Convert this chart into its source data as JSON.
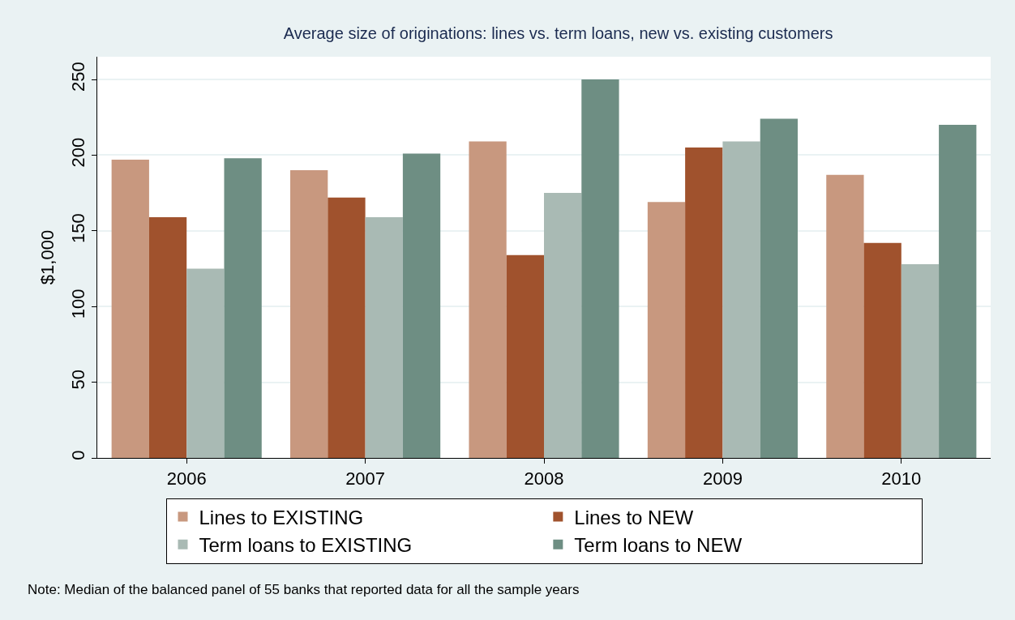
{
  "chart_data": {
    "type": "bar",
    "title": "Average size of originations: lines vs. term loans, new vs. existing customers",
    "ylabel": "$1,000",
    "categories": [
      "2006",
      "2007",
      "2008",
      "2009",
      "2010"
    ],
    "series": [
      {
        "name": "Lines to EXISTING",
        "color": "#c8987f",
        "values": [
          197,
          190,
          209,
          169,
          187
        ]
      },
      {
        "name": "Lines to NEW",
        "color": "#a0522d",
        "values": [
          159,
          172,
          134,
          205,
          142
        ]
      },
      {
        "name": "Term loans to EXISTING",
        "color": "#a9bab4",
        "values": [
          125,
          159,
          175,
          209,
          128
        ]
      },
      {
        "name": "Term loans to NEW",
        "color": "#6e8e83",
        "values": [
          198,
          201,
          250,
          224,
          220
        ]
      }
    ],
    "ylim": [
      0,
      265
    ],
    "yticks": [
      0,
      50,
      100,
      150,
      200,
      250
    ],
    "grid": "y",
    "legend": "bottom",
    "annotations": [
      "Note: Median of the balanced panel of 55 banks that reported data for all the sample years"
    ]
  }
}
